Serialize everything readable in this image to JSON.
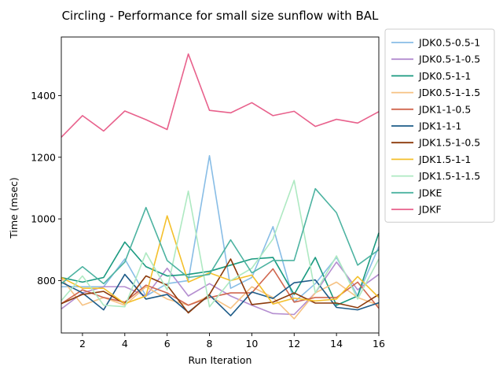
{
  "chart_data": {
    "type": "line",
    "title": "Circling - Performance for small size sunflow with BAL",
    "xlabel": "Run Iteration",
    "ylabel": "Time (msec)",
    "xlim": [
      1,
      16
    ],
    "ylim": [
      630,
      1590
    ],
    "xticks": [
      2,
      4,
      6,
      8,
      10,
      12,
      14,
      16
    ],
    "yticks": [
      800,
      1000,
      1200,
      1400
    ],
    "grid": false,
    "legend_position": "outside-right",
    "x": [
      1,
      2,
      3,
      4,
      5,
      6,
      7,
      8,
      9,
      10,
      11,
      12,
      13,
      14,
      15,
      16
    ],
    "series": [
      {
        "name": "JDK0.5-0.5-1",
        "color": "#88bde6",
        "values": [
          780,
          780,
          780,
          870,
          750,
          790,
          800,
          1205,
          775,
          810,
          975,
          730,
          790,
          875,
          750,
          910
        ]
      },
      {
        "name": "JDK0.5-1-0.5",
        "color": "#b48ed0",
        "values": [
          708,
          760,
          780,
          780,
          750,
          840,
          750,
          790,
          750,
          720,
          693,
          690,
          760,
          860,
          770,
          820
        ]
      },
      {
        "name": "JDK0.5-1-1",
        "color": "#1a9a80",
        "values": [
          810,
          795,
          810,
          925,
          845,
          815,
          820,
          830,
          850,
          870,
          875,
          755,
          875,
          720,
          750,
          955
        ]
      },
      {
        "name": "JDK0.5-1-1.5",
        "color": "#f6c283",
        "values": [
          808,
          720,
          745,
          720,
          780,
          740,
          720,
          750,
          710,
          780,
          745,
          676,
          760,
          795,
          745,
          720
        ]
      },
      {
        "name": "JDK1-1-0.5",
        "color": "#d0674f",
        "values": [
          725,
          770,
          745,
          730,
          785,
          760,
          720,
          745,
          760,
          760,
          838,
          730,
          745,
          745,
          795,
          710
        ]
      },
      {
        "name": "JDK1-1-1",
        "color": "#1d5b88",
        "values": [
          795,
          760,
          705,
          820,
          740,
          755,
          697,
          753,
          686,
          763,
          742,
          793,
          802,
          713,
          705,
          728
        ]
      },
      {
        "name": "JDK1.5-1-0.5",
        "color": "#8c3a0b",
        "values": [
          725,
          755,
          765,
          725,
          815,
          785,
          695,
          755,
          870,
          722,
          730,
          760,
          727,
          727,
          712,
          755
        ]
      },
      {
        "name": "JDK1.5-1-1",
        "color": "#f4c02c",
        "values": [
          810,
          775,
          775,
          725,
          750,
          1010,
          795,
          825,
          800,
          818,
          724,
          743,
          734,
          740,
          813,
          745
        ]
      },
      {
        "name": "JDK1.5-1-1.5",
        "color": "#aee9c2",
        "values": [
          735,
          815,
          720,
          715,
          890,
          770,
          1090,
          715,
          800,
          840,
          935,
          1125,
          760,
          880,
          740,
          870
        ]
      },
      {
        "name": "JDKE",
        "color": "#4db3a1",
        "values": [
          790,
          845,
          790,
          860,
          1037,
          865,
          810,
          820,
          932,
          825,
          865,
          865,
          1098,
          1020,
          850,
          900
        ]
      },
      {
        "name": "JDKF",
        "color": "#e8618c",
        "values": [
          1265,
          1335,
          1285,
          1350,
          1322,
          1290,
          1535,
          1352,
          1344,
          1377,
          1335,
          1349,
          1300,
          1323,
          1311,
          1348
        ]
      }
    ]
  }
}
